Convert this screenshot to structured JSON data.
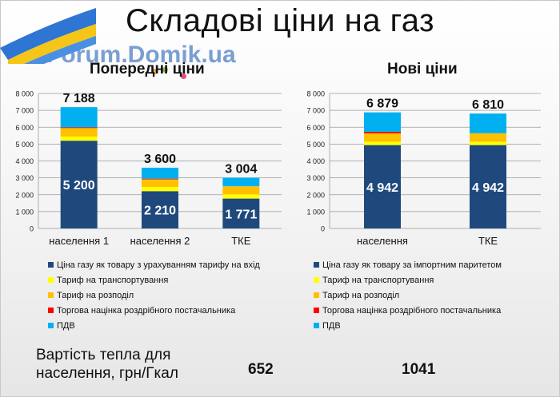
{
  "title": "Складові ціни на газ",
  "watermark": "Forum.Domik.ua",
  "colors": {
    "base": "#1f497d",
    "transport": "#ffff00",
    "distribution": "#ffc000",
    "markup": "#ff0000",
    "vat": "#00b0f0"
  },
  "chart_data": [
    {
      "type": "bar",
      "stacked": true,
      "title": "Попередні ціни",
      "categories": [
        "населення 1",
        "населення 2",
        "ТКЕ"
      ],
      "ylim": [
        0,
        8000
      ],
      "yticks": [
        "0",
        "1 000",
        "2 000",
        "3 000",
        "4 000",
        "5 000",
        "6 000",
        "7 000",
        "8 000"
      ],
      "grid": true,
      "series": [
        {
          "name": "Ціна газу як товару з урахуванням тарифу на вхід",
          "color_key": "base",
          "values": [
            5200,
            2210,
            1771
          ],
          "labels": [
            "5 200",
            "2 210",
            "1 771"
          ]
        },
        {
          "name": "Тариф на транспортування",
          "color_key": "transport",
          "values": [
            250,
            250,
            250
          ]
        },
        {
          "name": "Тариф на розподіл",
          "color_key": "distribution",
          "values": [
            500,
            450,
            480
          ]
        },
        {
          "name": "Торгова націнка роздрібного постачальника",
          "color_key": "markup",
          "values": [
            40,
            40,
            0
          ]
        },
        {
          "name": "ПДВ",
          "color_key": "vat",
          "values": [
            1198,
            650,
            503
          ]
        }
      ],
      "totals": [
        "7 188",
        "3 600",
        "3 004"
      ],
      "total_values": [
        7188,
        3600,
        3004
      ]
    },
    {
      "type": "bar",
      "stacked": true,
      "title": "Нові ціни",
      "categories": [
        "населення",
        "ТКЕ"
      ],
      "ylim": [
        0,
        8000
      ],
      "yticks": [
        "0",
        "1 000",
        "2 000",
        "3 000",
        "4 000",
        "5 000",
        "6 000",
        "7 000",
        "8 000"
      ],
      "grid": true,
      "series": [
        {
          "name": "Ціна газу як товару за імпортним паритетом",
          "color_key": "base",
          "values": [
            4942,
            4942
          ],
          "labels": [
            "4 942",
            "4 942"
          ]
        },
        {
          "name": "Тариф на транспортування",
          "color_key": "transport",
          "values": [
            200,
            200
          ]
        },
        {
          "name": "Тариф на розподіл",
          "color_key": "distribution",
          "values": [
            500,
            500
          ]
        },
        {
          "name": "Торгова націнка роздрібного постачальника",
          "color_key": "markup",
          "values": [
            90,
            0
          ]
        },
        {
          "name": "ПДВ",
          "color_key": "vat",
          "values": [
            1147,
            1168
          ]
        }
      ],
      "totals": [
        "6 879",
        "6 810"
      ],
      "total_values": [
        6879,
        6810
      ]
    }
  ],
  "footer": {
    "label": "Вартість тепла для населення, грн/Гкал",
    "values": [
      "652",
      "1041"
    ]
  }
}
